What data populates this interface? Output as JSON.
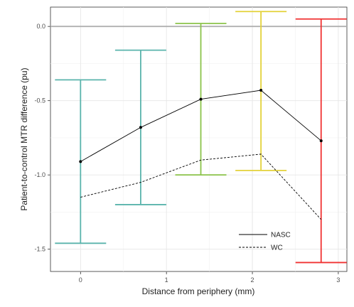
{
  "chart_data": {
    "type": "line",
    "xlabel": "Distance from periphery (mm)",
    "ylabel": "Patient-to-control MTR difference (pu)",
    "xlim": [
      -0.35,
      3.1
    ],
    "ylim": [
      -1.65,
      0.13
    ],
    "x_ticks": [
      {
        "value": 0,
        "label": "0"
      },
      {
        "value": 1,
        "label": "1"
      },
      {
        "value": 2,
        "label": "2"
      },
      {
        "value": 3,
        "label": "3"
      }
    ],
    "y_ticks": [
      {
        "value": 0,
        "label": "0.0"
      },
      {
        "value": -0.5,
        "label": "-0.5"
      },
      {
        "value": -1.0,
        "label": "-1.0"
      },
      {
        "value": -1.5,
        "label": "-1.5"
      }
    ],
    "reference_line": {
      "y": 0,
      "color": "#b0b0b0"
    },
    "grid": true,
    "legend_position": "bottom-right",
    "series": [
      {
        "name": "NASC",
        "style": "solid",
        "color": "#000000",
        "x": [
          0,
          0.7,
          1.4,
          2.1,
          2.8
        ],
        "y": [
          -0.91,
          -0.68,
          -0.49,
          -0.43,
          -0.77
        ]
      },
      {
        "name": "WC",
        "style": "dashed",
        "color": "#000000",
        "x": [
          0,
          0.7,
          1.4,
          2.1,
          2.8
        ],
        "y": [
          -1.15,
          -1.05,
          -0.9,
          -0.86,
          -1.3
        ]
      }
    ],
    "error_bars": [
      {
        "x": 0.0,
        "low": -1.46,
        "high": -0.36,
        "color": "#5ab4ac"
      },
      {
        "x": 0.7,
        "low": -1.2,
        "high": -0.16,
        "color": "#5ab4ac"
      },
      {
        "x": 1.4,
        "low": -1.0,
        "high": 0.02,
        "color": "#8bc34a"
      },
      {
        "x": 2.1,
        "low": -0.97,
        "high": 0.1,
        "color": "#e3d23a"
      },
      {
        "x": 2.8,
        "low": -1.59,
        "high": 0.05,
        "color": "#f03232"
      }
    ]
  }
}
